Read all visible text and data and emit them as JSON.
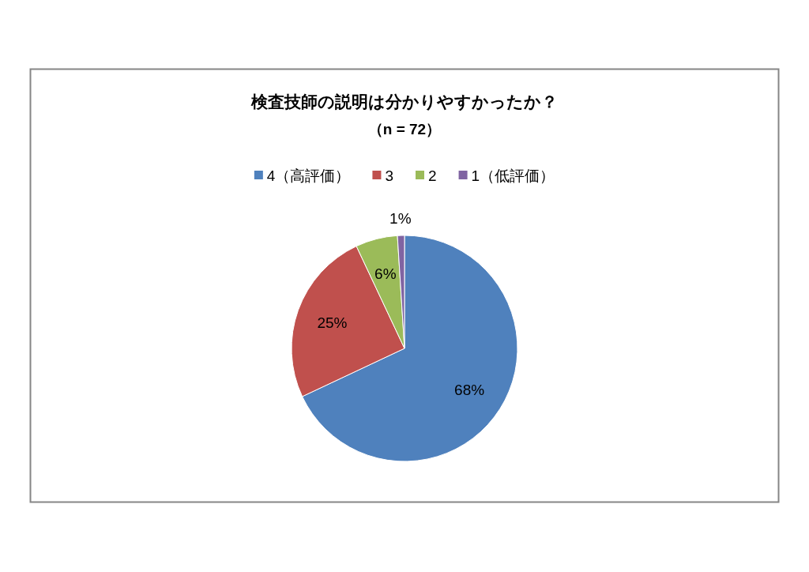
{
  "chart_data": {
    "type": "pie",
    "title": "検査技師の説明は分かりやすかったか？",
    "subtitle": "（n = 72）",
    "categories": [
      "4（高評価）",
      "3",
      "2",
      "1（低評価）"
    ],
    "values": [
      68,
      25,
      6,
      1
    ],
    "colors": [
      "#4f81bd",
      "#c0504d",
      "#9bbb59",
      "#8064a2"
    ],
    "value_labels": [
      "68%",
      "25%",
      "6%",
      "1%"
    ],
    "legend": "top"
  }
}
